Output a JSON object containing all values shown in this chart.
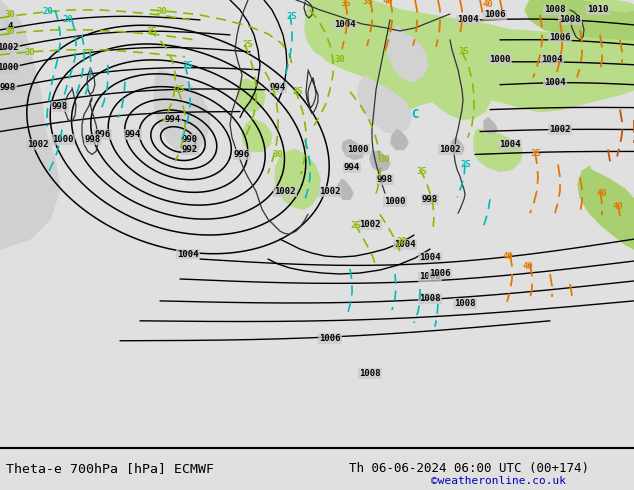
{
  "title_left": "Theta-e 700hPa [hPa] ECMWF",
  "title_right": "Th 06-06-2024 06:00 UTC (00+174)",
  "copyright": "©weatheronline.co.uk",
  "bg_grey": "#c8c8c8",
  "green_light": "#b8dc88",
  "green_mid": "#a8d070",
  "white_sea": "#d8d8d8",
  "footer_bg": "#e0e0e0",
  "black": "#000000",
  "cyan": "#00b8b8",
  "lime": "#88bb00",
  "orange": "#e07800",
  "dark_orange": "#c85000",
  "label_fs": 6.5,
  "contour_lw": 1.0
}
